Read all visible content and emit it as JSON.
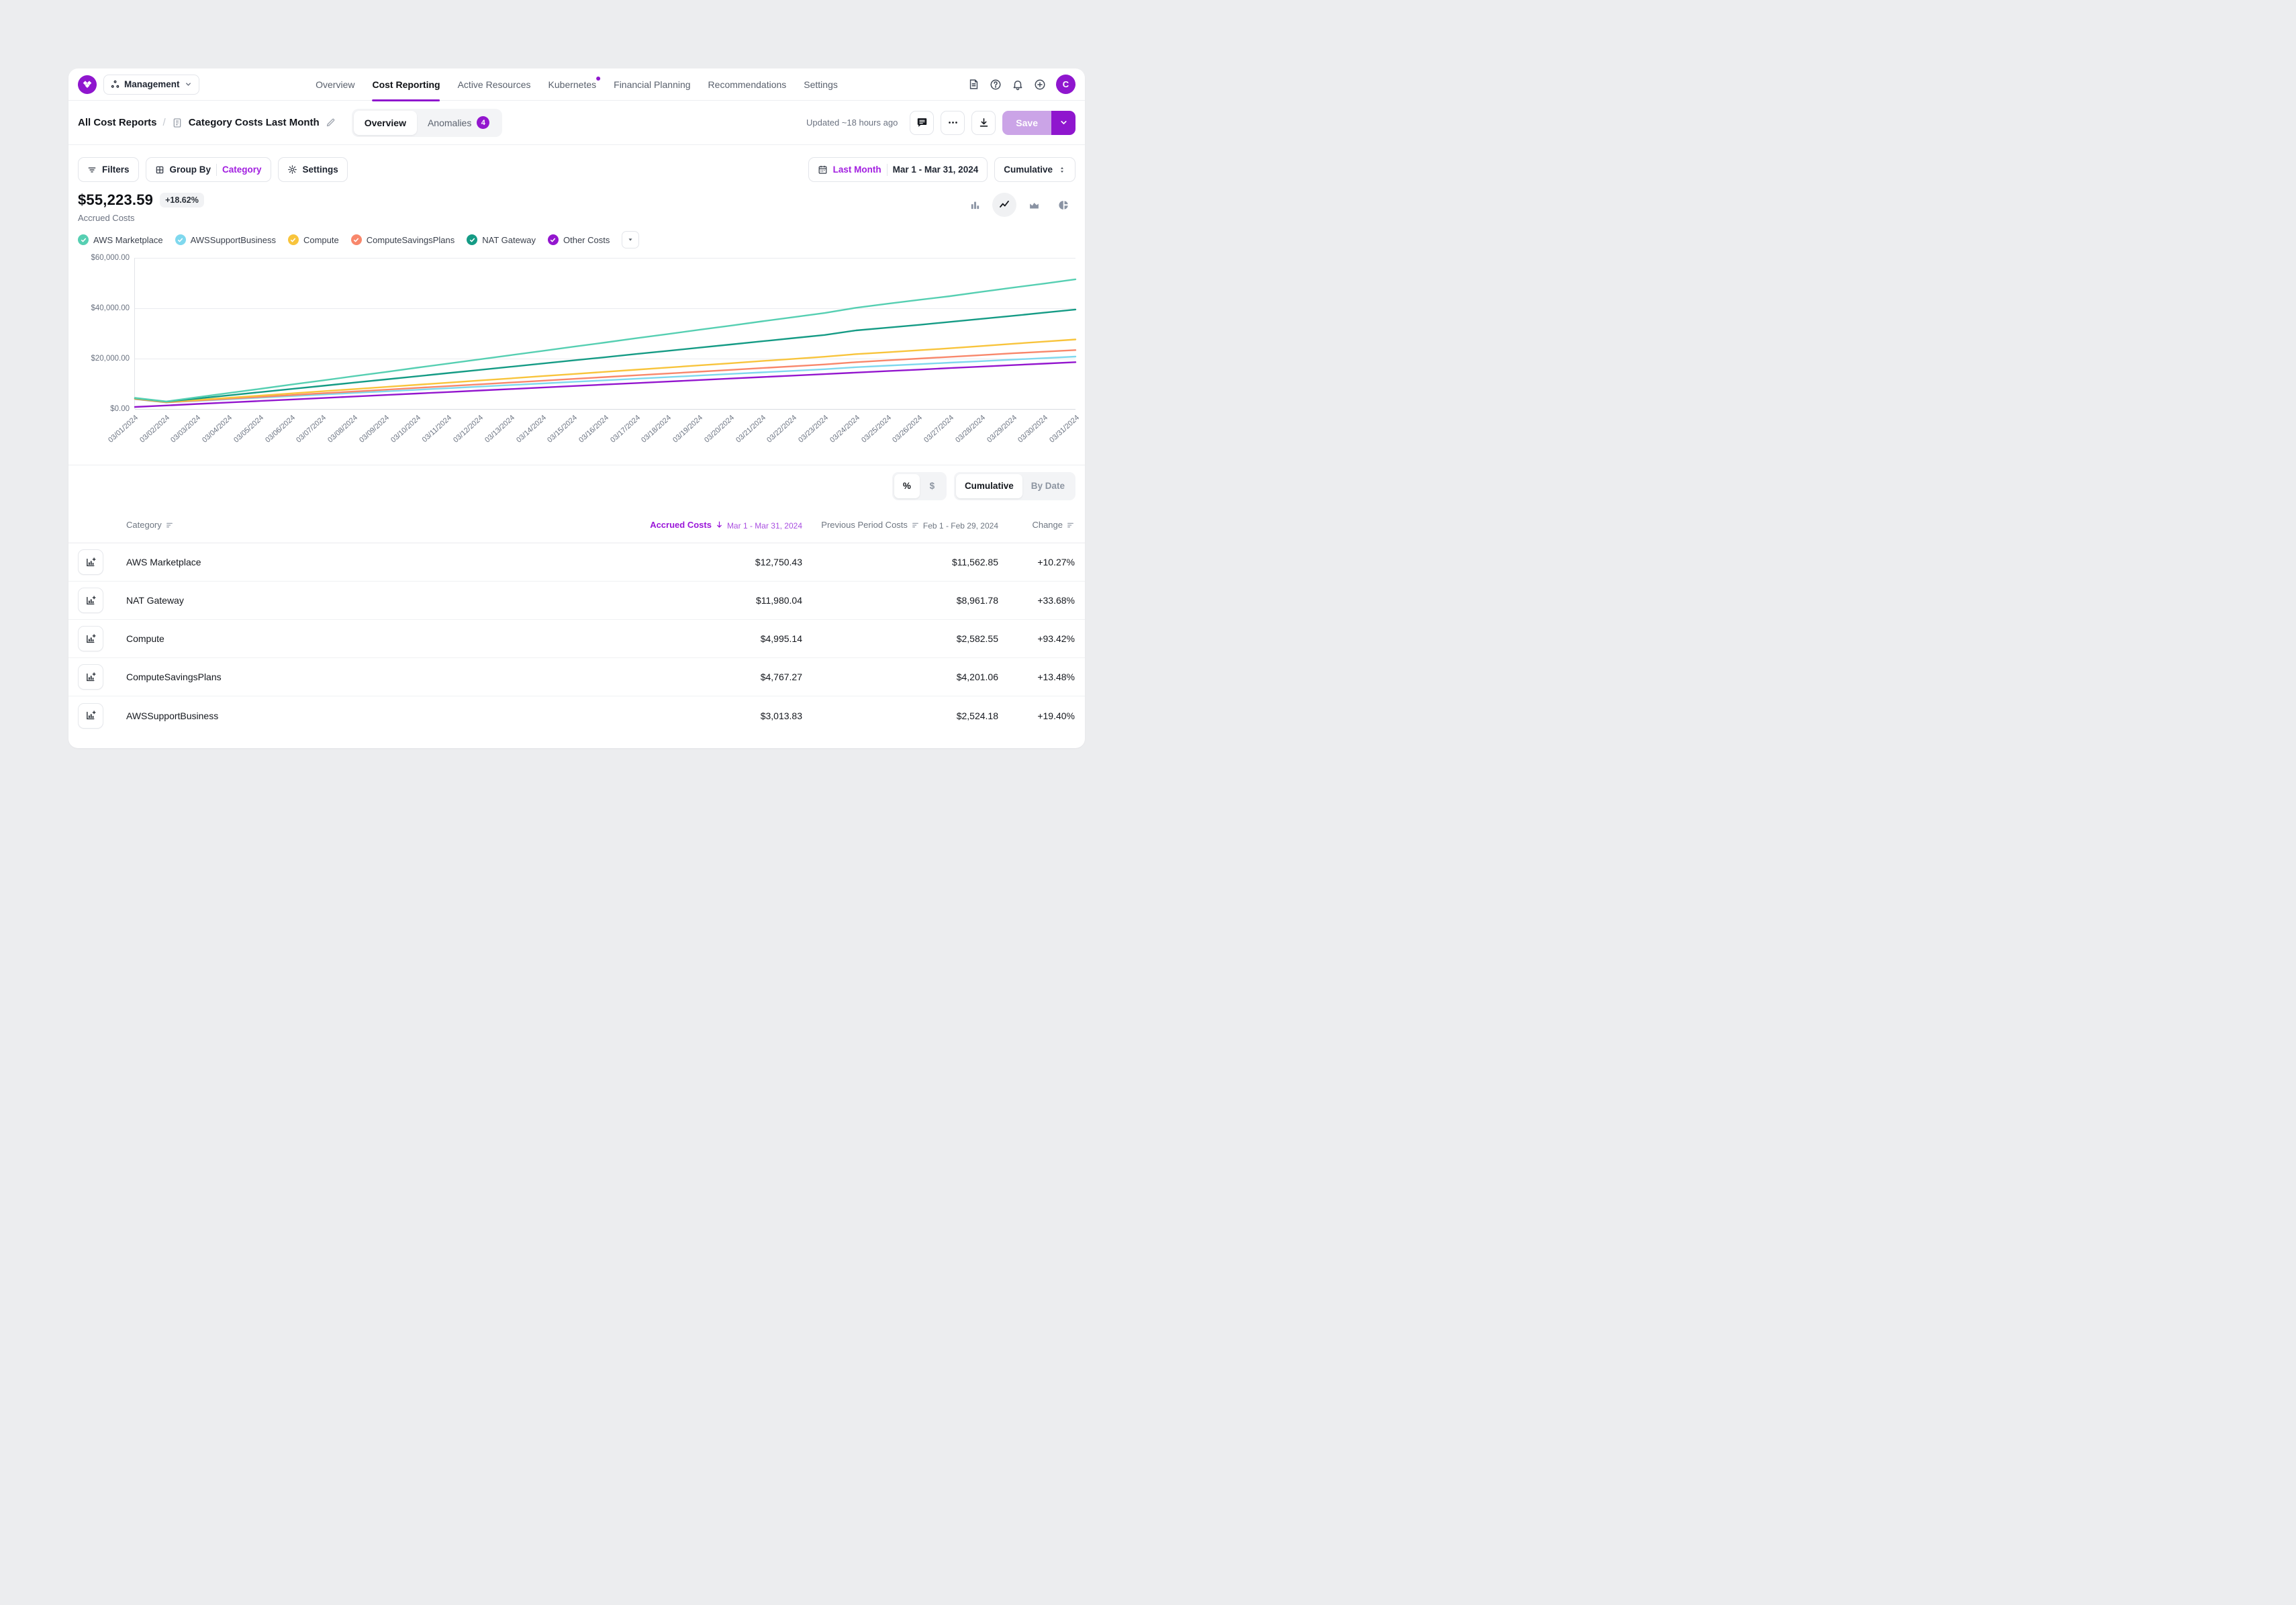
{
  "brand": {
    "accent": "#8F16CE",
    "accent_light": "#CBA4E7"
  },
  "header": {
    "workspace_label": "Management",
    "nav_items": [
      {
        "label": "Overview",
        "active": false,
        "dot": false
      },
      {
        "label": "Cost Reporting",
        "active": true,
        "dot": false
      },
      {
        "label": "Active Resources",
        "active": false,
        "dot": false
      },
      {
        "label": "Kubernetes",
        "active": false,
        "dot": true
      },
      {
        "label": "Financial Planning",
        "active": false,
        "dot": false
      },
      {
        "label": "Recommendations",
        "active": false,
        "dot": false
      },
      {
        "label": "Settings",
        "active": false,
        "dot": false
      }
    ],
    "avatar_initial": "C"
  },
  "toolbar": {
    "breadcrumb_root": "All Cost Reports",
    "breadcrumb_sep": "/",
    "report_title": "Category Costs Last Month",
    "tabs": [
      {
        "label": "Overview",
        "active": true,
        "badge": null
      },
      {
        "label": "Anomalies",
        "active": false,
        "badge": "4"
      }
    ],
    "updated": "Updated ~18 hours ago",
    "save_label": "Save"
  },
  "controls": {
    "filters_label": "Filters",
    "group_by_label": "Group By",
    "group_by_value": "Category",
    "settings_label": "Settings",
    "date_preset": "Last Month",
    "date_range": "Mar 1 - Mar 31, 2024",
    "aggregation": "Cumulative"
  },
  "summary": {
    "total": "$55,223.59",
    "change_badge": "+18.62%",
    "label": "Accrued Costs"
  },
  "chart_data": {
    "type": "line",
    "title": "Accrued Costs, cumulative by day, grouped by Category",
    "xlabel": "",
    "ylabel": "",
    "ylim": [
      0,
      60000
    ],
    "yticks": [
      {
        "value": 60000,
        "label": "$60,000.00"
      },
      {
        "value": 40000,
        "label": "$40,000.00"
      },
      {
        "value": 20000,
        "label": "$20,000.00"
      },
      {
        "value": 0,
        "label": "$0.00"
      }
    ],
    "grid": "horizontal",
    "legend_position": "top",
    "x": [
      "03/01/2024",
      "03/02/2024",
      "03/03/2024",
      "03/04/2024",
      "03/05/2024",
      "03/06/2024",
      "03/07/2024",
      "03/08/2024",
      "03/09/2024",
      "03/10/2024",
      "03/11/2024",
      "03/12/2024",
      "03/13/2024",
      "03/14/2024",
      "03/15/2024",
      "03/16/2024",
      "03/17/2024",
      "03/18/2024",
      "03/19/2024",
      "03/20/2024",
      "03/21/2024",
      "03/22/2024",
      "03/23/2024",
      "03/24/2024",
      "03/25/2024",
      "03/26/2024",
      "03/27/2024",
      "03/28/2024",
      "03/29/2024",
      "03/30/2024",
      "03/31/2024"
    ],
    "series": [
      {
        "name": "Other Costs",
        "color": "#9316CE",
        "values": [
          800,
          1390,
          1990,
          2580,
          3170,
          3770,
          4360,
          4950,
          5550,
          6140,
          6730,
          7330,
          7920,
          8510,
          9110,
          9700,
          10290,
          10890,
          11480,
          12070,
          12670,
          13260,
          13850,
          14450,
          15040,
          15630,
          16230,
          16820,
          17410,
          18010,
          18600
        ]
      },
      {
        "name": "AWSSupportBusiness",
        "color": "#7FD8EE",
        "values": [
          3900,
          2600,
          3230,
          3860,
          4490,
          5110,
          5740,
          6370,
          7000,
          7630,
          8250,
          8880,
          9510,
          10140,
          10770,
          11390,
          12020,
          12650,
          13280,
          13910,
          14530,
          15160,
          15790,
          16600,
          17200,
          17800,
          18400,
          19000,
          19600,
          20200,
          20800
        ]
      },
      {
        "name": "ComputeSavingsPlans",
        "color": "#F8876B",
        "values": [
          4000,
          2650,
          3370,
          4080,
          4800,
          5510,
          6230,
          6940,
          7660,
          8370,
          9090,
          9800,
          10520,
          11230,
          11950,
          12660,
          13380,
          14090,
          14810,
          15520,
          16240,
          16950,
          17670,
          18600,
          19300,
          20000,
          20700,
          21400,
          22100,
          22750,
          23400
        ]
      },
      {
        "name": "Compute",
        "color": "#F8C43C",
        "values": [
          4100,
          2750,
          3610,
          4460,
          5320,
          6180,
          7030,
          7890,
          8750,
          9600,
          10460,
          11320,
          12170,
          13030,
          13890,
          14740,
          15600,
          16460,
          17310,
          18170,
          19030,
          19880,
          20740,
          21800,
          22500,
          23300,
          24100,
          25000,
          25900,
          26750,
          27600
        ]
      },
      {
        "name": "NAT Gateway",
        "color": "#159B85",
        "values": [
          4300,
          2900,
          4160,
          5420,
          6680,
          7950,
          9210,
          10470,
          11730,
          13000,
          14260,
          15520,
          16780,
          18040,
          19300,
          20570,
          21830,
          23090,
          24350,
          25610,
          26880,
          28140,
          29400,
          31200,
          32300,
          33400,
          34600,
          35800,
          37000,
          38250,
          39500
        ]
      },
      {
        "name": "AWS Marketplace",
        "color": "#56CFB2",
        "values": [
          4400,
          3000,
          4700,
          6350,
          8000,
          9700,
          11350,
          13050,
          14700,
          16400,
          18050,
          19700,
          21400,
          23050,
          24750,
          26400,
          28100,
          29750,
          31450,
          33100,
          34800,
          36450,
          38100,
          40200,
          41800,
          43300,
          44800,
          46500,
          48200,
          49800,
          51500
        ]
      }
    ]
  },
  "legend": [
    {
      "label": "AWS Marketplace",
      "color": "#56CFB2"
    },
    {
      "label": "AWSSupportBusiness",
      "color": "#7FD8EE"
    },
    {
      "label": "Compute",
      "color": "#F8C43C"
    },
    {
      "label": "ComputeSavingsPlans",
      "color": "#F8876B"
    },
    {
      "label": "NAT Gateway",
      "color": "#159B85"
    },
    {
      "label": "Other Costs",
      "color": "#9316CE"
    }
  ],
  "table": {
    "unit_toggle": [
      {
        "label": "%",
        "active": true
      },
      {
        "label": "$",
        "active": false
      }
    ],
    "mode_toggle": [
      {
        "label": "Cumulative",
        "active": true
      },
      {
        "label": "By Date",
        "active": false
      }
    ],
    "columns": {
      "category": "Category",
      "accrued": "Accrued Costs",
      "accrued_sub": "Mar 1 - Mar 31, 2024",
      "previous": "Previous Period Costs",
      "previous_sub": "Feb 1 - Feb 29, 2024",
      "change": "Change"
    },
    "rows": [
      {
        "category": "AWS Marketplace",
        "accrued": "$12,750.43",
        "previous": "$11,562.85",
        "change": "+10.27%"
      },
      {
        "category": "NAT Gateway",
        "accrued": "$11,980.04",
        "previous": "$8,961.78",
        "change": "+33.68%"
      },
      {
        "category": "Compute",
        "accrued": "$4,995.14",
        "previous": "$2,582.55",
        "change": "+93.42%"
      },
      {
        "category": "ComputeSavingsPlans",
        "accrued": "$4,767.27",
        "previous": "$4,201.06",
        "change": "+13.48%"
      },
      {
        "category": "AWSSupportBusiness",
        "accrued": "$3,013.83",
        "previous": "$2,524.18",
        "change": "+19.40%"
      }
    ]
  }
}
